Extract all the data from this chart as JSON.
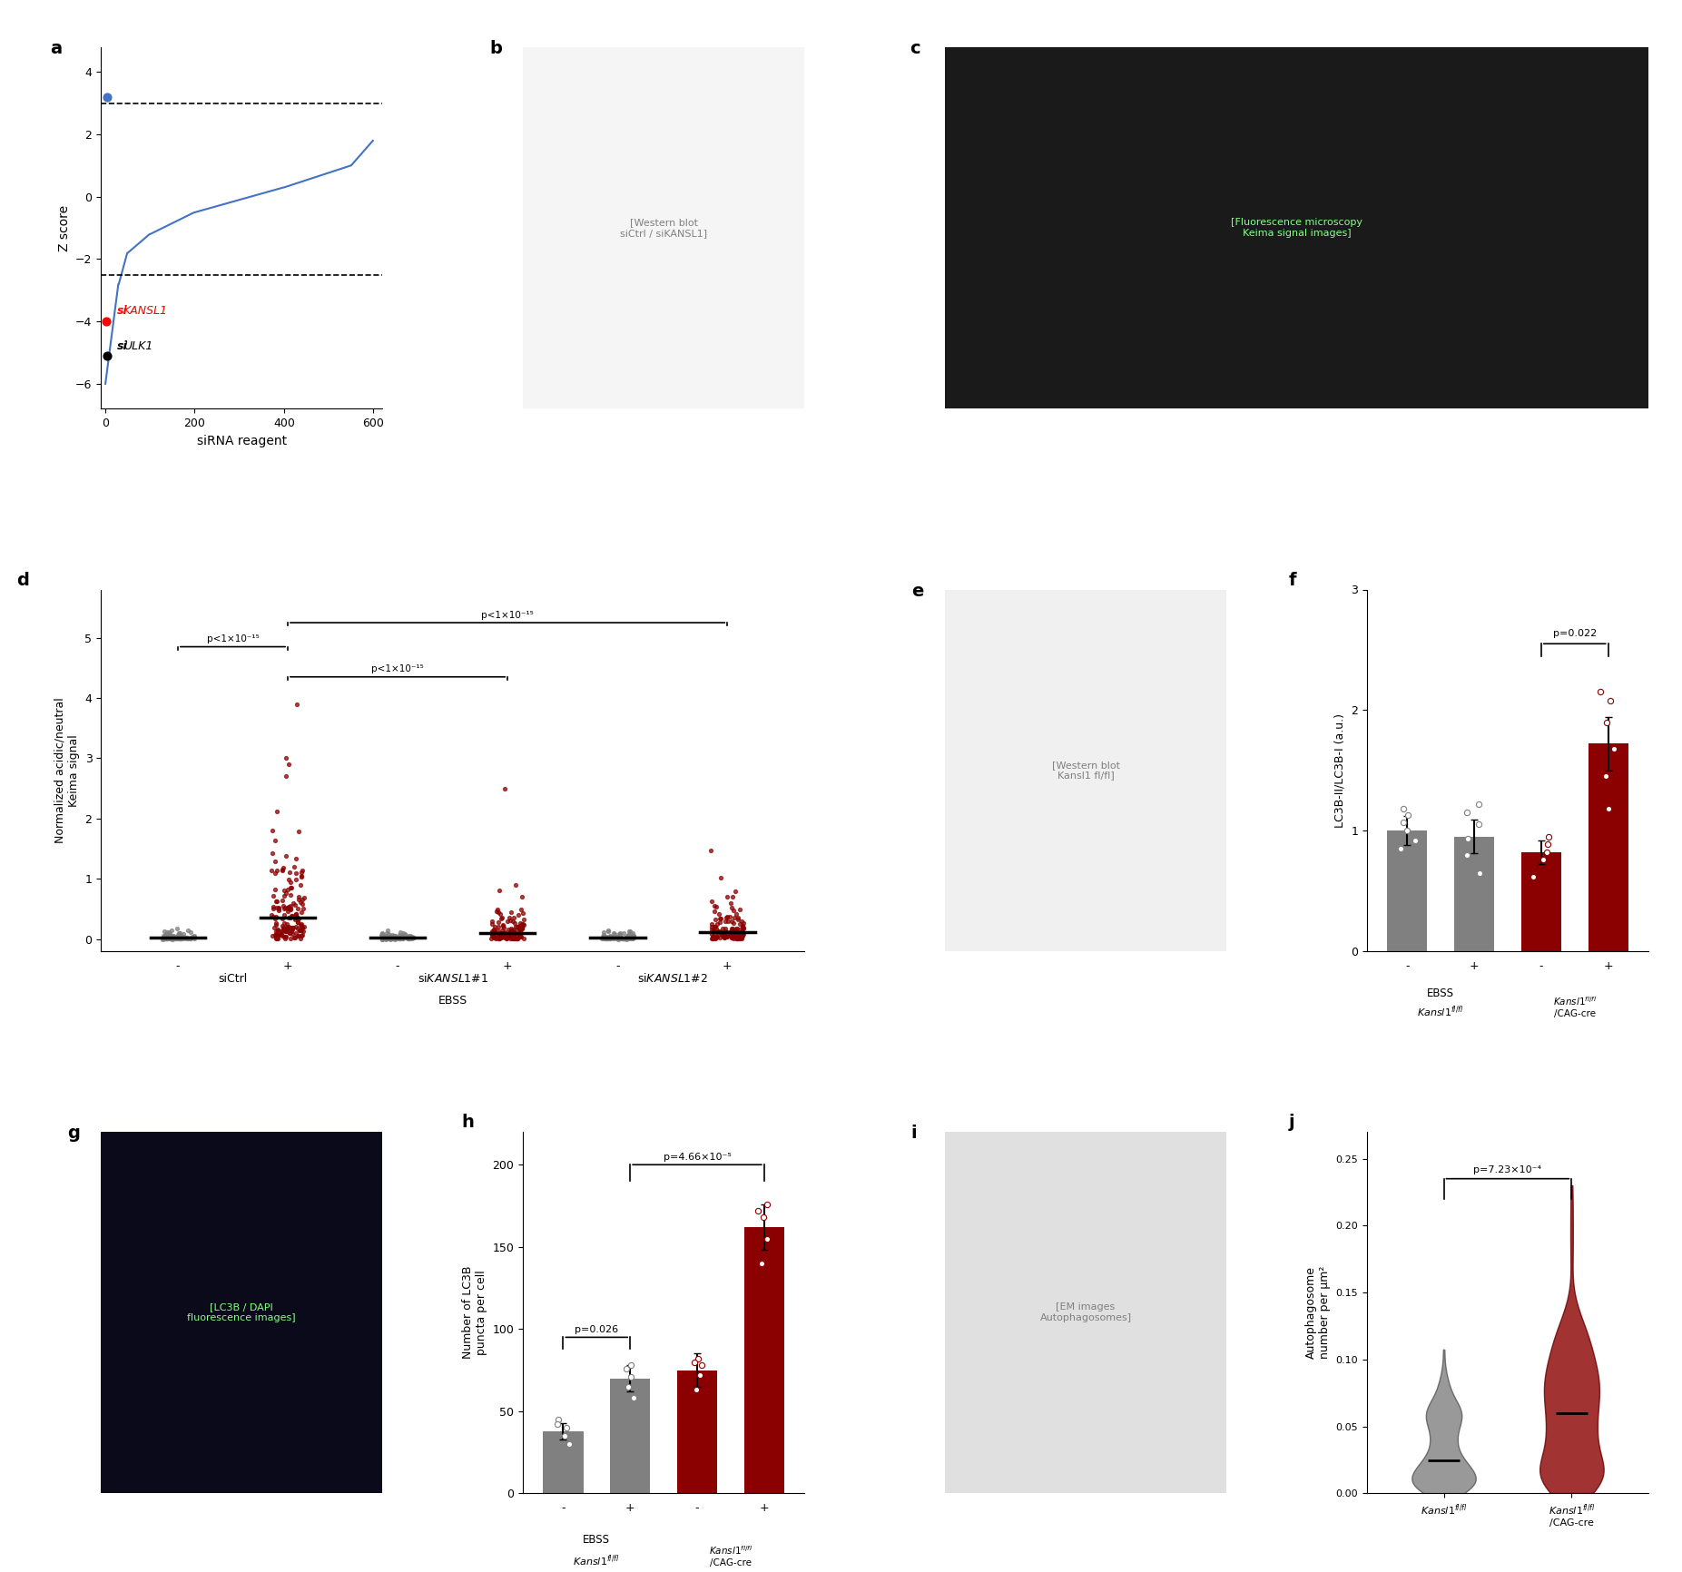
{
  "panel_a": {
    "title": "a",
    "xlabel": "siRNA reagent",
    "ylabel": "Z score",
    "xlim": [
      -10,
      620
    ],
    "ylim": [
      -6.8,
      4.8
    ],
    "yticks": [
      -6,
      -4,
      -2,
      0,
      2,
      4
    ],
    "xticks": [
      0,
      200,
      400,
      600
    ],
    "dashed_upper": 3.0,
    "dashed_lower": -2.5,
    "highlight_red_x": 2,
    "highlight_red_y": -4.0,
    "highlight_blue_x": 4,
    "highlight_blue_y": 3.2,
    "highlight_black_x": 3,
    "highlight_black_y": -5.1,
    "curve_color": "#4472C4"
  },
  "panel_d": {
    "title": "d",
    "ylabel": "Normalized acidic/neutral\nKeima signal",
    "ylim": [
      -0.2,
      5.8
    ],
    "yticks": [
      0,
      1,
      2,
      3,
      4,
      5
    ],
    "group_colors": [
      "#808080",
      "#8B0000",
      "#808080",
      "#8B0000",
      "#808080",
      "#8B0000"
    ],
    "pval_texts": [
      "p<1×10⁻¹⁵",
      "p<1×10⁻¹⁵",
      "p<1×10⁻¹⁵"
    ]
  },
  "panel_f": {
    "title": "f",
    "ylabel": "LC3B-II/LC3B-I (a.u.)",
    "ylim": [
      0,
      3.0
    ],
    "yticks": [
      0,
      1,
      2,
      3
    ],
    "pval": "p=0.022",
    "groups": [
      {
        "x": 1,
        "mean": 1.0,
        "sem": 0.12,
        "color": "#808080",
        "pts": [
          0.85,
          0.92,
          1.0,
          1.07,
          1.13,
          1.18
        ]
      },
      {
        "x": 2,
        "mean": 0.95,
        "sem": 0.14,
        "color": "#808080",
        "pts": [
          0.65,
          0.8,
          0.93,
          1.05,
          1.15,
          1.22
        ]
      },
      {
        "x": 3,
        "mean": 0.82,
        "sem": 0.1,
        "color": "#8B0000",
        "pts": [
          0.62,
          0.76,
          0.82,
          0.89,
          0.95
        ]
      },
      {
        "x": 4,
        "mean": 1.72,
        "sem": 0.22,
        "color": "#8B0000",
        "pts": [
          1.18,
          1.45,
          1.68,
          1.9,
          2.08,
          2.15
        ]
      }
    ]
  },
  "panel_h": {
    "title": "h",
    "ylabel": "Number of LC3B\npuncta per cell",
    "ylim": [
      0,
      220
    ],
    "yticks": [
      0,
      50,
      100,
      150,
      200
    ],
    "pval1": "p=0.026",
    "pval2": "p=4.66×10⁻⁵",
    "groups": [
      {
        "x": 1,
        "mean": 38,
        "sem": 5,
        "color": "#808080",
        "pts": [
          30,
          35,
          40,
          45,
          42
        ]
      },
      {
        "x": 2,
        "mean": 70,
        "sem": 8,
        "color": "#808080",
        "pts": [
          58,
          65,
          71,
          76,
          78
        ]
      },
      {
        "x": 3,
        "mean": 75,
        "sem": 10,
        "color": "#8B0000",
        "pts": [
          63,
          72,
          78,
          82,
          80
        ]
      },
      {
        "x": 4,
        "mean": 162,
        "sem": 14,
        "color": "#8B0000",
        "pts": [
          140,
          155,
          168,
          172,
          176
        ]
      }
    ]
  },
  "panel_j": {
    "title": "j",
    "ylabel": "Autophagosome\nnumber per μm²",
    "ylim": [
      0,
      0.27
    ],
    "yticks": [
      0.0,
      0.05,
      0.1,
      0.15,
      0.2,
      0.25
    ],
    "pval": "p=7.23×10⁻⁴",
    "group1_color": "#808080",
    "group2_color": "#8B0000"
  },
  "colors": {
    "red": "#CC0000",
    "dark_red": "#8B0000",
    "blue": "#4472C4",
    "gray": "#808080",
    "black": "#000000",
    "white": "#FFFFFF"
  }
}
